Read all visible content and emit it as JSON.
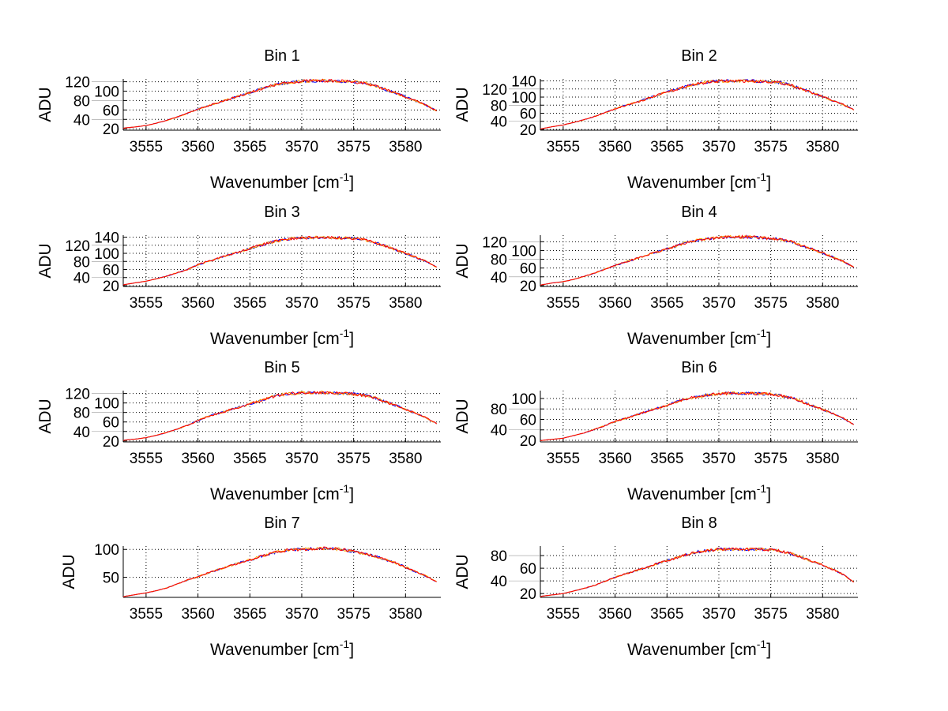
{
  "chart_data": [
    {
      "type": "line",
      "title": "Bin 1",
      "xlabel": "Wavenumber [cm",
      "xlabel_sup": "-1",
      "xlabel_end": "]",
      "ylabel": "ADU",
      "xlim": [
        3552.8,
        3583.4
      ],
      "ylim": [
        17,
        126
      ],
      "xticks": [
        3555,
        3560,
        3565,
        3570,
        3575,
        3580
      ],
      "yticks": [
        20,
        40,
        60,
        80,
        100,
        120
      ],
      "grid": true,
      "x": [
        3553,
        3554,
        3555,
        3556,
        3557,
        3558,
        3559,
        3560,
        3561,
        3562,
        3563,
        3564,
        3565,
        3566,
        3567,
        3568,
        3569,
        3570,
        3571,
        3572,
        3573,
        3574,
        3575,
        3576,
        3577,
        3578,
        3579,
        3580,
        3581,
        3582,
        3583
      ],
      "values": [
        22,
        24,
        27,
        32,
        38,
        45,
        53,
        62,
        69,
        76,
        83,
        90,
        97,
        104,
        111,
        116,
        119,
        121,
        122,
        122,
        122,
        121,
        120,
        117,
        112,
        104,
        96,
        88,
        79,
        70,
        58
      ]
    },
    {
      "type": "line",
      "title": "Bin 2",
      "xlabel": "Wavenumber [cm",
      "xlabel_sup": "-1",
      "xlabel_end": "]",
      "ylabel": "ADU",
      "xlim": [
        3552.8,
        3583.4
      ],
      "ylim": [
        18,
        145
      ],
      "xticks": [
        3555,
        3560,
        3565,
        3570,
        3575,
        3580
      ],
      "yticks": [
        20,
        40,
        60,
        80,
        100,
        120,
        140
      ],
      "grid": true,
      "x": [
        3553,
        3554,
        3555,
        3556,
        3557,
        3558,
        3559,
        3560,
        3561,
        3562,
        3563,
        3564,
        3565,
        3566,
        3567,
        3568,
        3569,
        3570,
        3571,
        3572,
        3573,
        3574,
        3575,
        3576,
        3577,
        3578,
        3579,
        3580,
        3581,
        3582,
        3583
      ],
      "values": [
        22,
        27,
        31,
        37,
        44,
        52,
        61,
        71,
        79,
        87,
        95,
        104,
        112,
        120,
        128,
        133,
        137,
        139,
        140,
        140,
        140,
        139,
        138,
        135,
        129,
        120,
        110,
        101,
        91,
        81,
        68
      ]
    },
    {
      "type": "line",
      "title": "Bin 3",
      "xlabel": "Wavenumber [cm",
      "xlabel_sup": "-1",
      "xlabel_end": "]",
      "ylabel": "ADU",
      "xlim": [
        3552.8,
        3583.4
      ],
      "ylim": [
        18,
        145
      ],
      "xticks": [
        3555,
        3560,
        3565,
        3570,
        3575,
        3580
      ],
      "yticks": [
        20,
        40,
        60,
        80,
        100,
        120,
        140
      ],
      "grid": true,
      "x": [
        3553,
        3554,
        3555,
        3556,
        3557,
        3558,
        3559,
        3560,
        3561,
        3562,
        3563,
        3564,
        3565,
        3566,
        3567,
        3568,
        3569,
        3570,
        3571,
        3572,
        3573,
        3574,
        3575,
        3576,
        3577,
        3578,
        3579,
        3580,
        3581,
        3582,
        3583
      ],
      "values": [
        23,
        27,
        31,
        37,
        44,
        52,
        60,
        72,
        80,
        88,
        96,
        104,
        112,
        120,
        127,
        132,
        136,
        138,
        139,
        140,
        139,
        138,
        137,
        134,
        128,
        119,
        109,
        100,
        90,
        80,
        66
      ]
    },
    {
      "type": "line",
      "title": "Bin 4",
      "xlabel": "Wavenumber [cm",
      "xlabel_sup": "-1",
      "xlabel_end": "]",
      "ylabel": "ADU",
      "xlim": [
        3552.8,
        3583.4
      ],
      "ylim": [
        18,
        135
      ],
      "xticks": [
        3555,
        3560,
        3565,
        3570,
        3575,
        3580
      ],
      "yticks": [
        20,
        40,
        60,
        80,
        100,
        120
      ],
      "grid": true,
      "x": [
        3553,
        3554,
        3555,
        3556,
        3557,
        3558,
        3559,
        3560,
        3561,
        3562,
        3563,
        3564,
        3565,
        3566,
        3567,
        3568,
        3569,
        3570,
        3571,
        3572,
        3573,
        3574,
        3575,
        3576,
        3577,
        3578,
        3579,
        3580,
        3581,
        3582,
        3583
      ],
      "values": [
        22,
        26,
        29,
        34,
        41,
        48,
        57,
        66,
        74,
        81,
        89,
        96,
        104,
        111,
        119,
        124,
        127,
        129,
        131,
        131,
        131,
        129,
        128,
        125,
        120,
        111,
        103,
        94,
        85,
        75,
        62
      ]
    },
    {
      "type": "line",
      "title": "Bin 5",
      "xlabel": "Wavenumber [cm",
      "xlabel_sup": "-1",
      "xlabel_end": "]",
      "ylabel": "ADU",
      "xlim": [
        3552.8,
        3583.4
      ],
      "ylim": [
        18,
        126
      ],
      "xticks": [
        3555,
        3560,
        3565,
        3570,
        3575,
        3580
      ],
      "yticks": [
        20,
        40,
        60,
        80,
        100,
        120
      ],
      "grid": true,
      "x": [
        3553,
        3554,
        3555,
        3556,
        3557,
        3558,
        3559,
        3560,
        3561,
        3562,
        3563,
        3564,
        3565,
        3566,
        3567,
        3568,
        3569,
        3570,
        3571,
        3572,
        3573,
        3574,
        3575,
        3576,
        3577,
        3578,
        3579,
        3580,
        3581,
        3582,
        3583
      ],
      "values": [
        22,
        24,
        27,
        32,
        38,
        45,
        53,
        63,
        72,
        78,
        85,
        91,
        98,
        105,
        112,
        117,
        120,
        121,
        122,
        122,
        121,
        120,
        119,
        116,
        111,
        103,
        95,
        87,
        78,
        69,
        56
      ]
    },
    {
      "type": "line",
      "title": "Bin 6",
      "xlabel": "Wavenumber [cm",
      "xlabel_sup": "-1",
      "xlabel_end": "]",
      "ylabel": "ADU",
      "xlim": [
        3552.8,
        3583.4
      ],
      "ylim": [
        17,
        115
      ],
      "xticks": [
        3555,
        3560,
        3565,
        3570,
        3575,
        3580
      ],
      "yticks": [
        20,
        40,
        60,
        80,
        100
      ],
      "grid": true,
      "x": [
        3553,
        3554,
        3555,
        3556,
        3557,
        3558,
        3559,
        3560,
        3561,
        3562,
        3563,
        3564,
        3565,
        3566,
        3567,
        3568,
        3569,
        3570,
        3571,
        3572,
        3573,
        3574,
        3575,
        3576,
        3577,
        3578,
        3579,
        3580,
        3581,
        3582,
        3583
      ],
      "values": [
        20,
        22,
        24,
        29,
        34,
        41,
        48,
        56,
        62,
        68,
        75,
        81,
        87,
        94,
        100,
        104,
        107,
        109,
        110,
        110,
        110,
        109,
        108,
        105,
        101,
        94,
        86,
        79,
        71,
        62,
        50
      ]
    },
    {
      "type": "line",
      "title": "Bin 7",
      "xlabel": "Wavenumber [cm",
      "xlabel_sup": "-1",
      "xlabel_end": "]",
      "ylabel": "ADU",
      "xlim": [
        3552.8,
        3583.4
      ],
      "ylim": [
        14,
        106
      ],
      "xticks": [
        3555,
        3560,
        3565,
        3570,
        3575,
        3580
      ],
      "yticks": [
        50,
        100
      ],
      "grid": true,
      "x": [
        3553,
        3554,
        3555,
        3556,
        3557,
        3558,
        3559,
        3560,
        3561,
        3562,
        3563,
        3564,
        3565,
        3566,
        3567,
        3568,
        3569,
        3570,
        3571,
        3572,
        3573,
        3574,
        3575,
        3576,
        3577,
        3578,
        3579,
        3580,
        3581,
        3582,
        3583
      ],
      "values": [
        16,
        19,
        22,
        26,
        31,
        38,
        45,
        51,
        58,
        64,
        70,
        76,
        81,
        87,
        93,
        97,
        100,
        100,
        101,
        102,
        101,
        100,
        96,
        92,
        88,
        82,
        76,
        68,
        60,
        52,
        42
      ]
    },
    {
      "type": "line",
      "title": "Bin 8",
      "xlabel": "Wavenumber [cm",
      "xlabel_sup": "-1",
      "xlabel_end": "]",
      "ylabel": "ADU",
      "xlim": [
        3552.8,
        3583.4
      ],
      "ylim": [
        14,
        95
      ],
      "xticks": [
        3555,
        3560,
        3565,
        3570,
        3575,
        3580
      ],
      "yticks": [
        20,
        40,
        60,
        80
      ],
      "grid": true,
      "x": [
        3553,
        3554,
        3555,
        3556,
        3557,
        3558,
        3559,
        3560,
        3561,
        3562,
        3563,
        3564,
        3565,
        3566,
        3567,
        3568,
        3569,
        3570,
        3571,
        3572,
        3573,
        3574,
        3575,
        3576,
        3577,
        3578,
        3579,
        3580,
        3581,
        3582,
        3583
      ],
      "values": [
        16,
        18,
        20,
        24,
        28,
        33,
        39,
        46,
        51,
        56,
        61,
        67,
        72,
        77,
        82,
        86,
        88,
        90,
        90,
        90,
        90,
        90,
        89,
        87,
        83,
        77,
        71,
        65,
        58,
        50,
        38
      ]
    }
  ],
  "colors": {
    "series": [
      "#0000ff",
      "#ffa500",
      "#ff0000"
    ],
    "grid": "#000000"
  }
}
